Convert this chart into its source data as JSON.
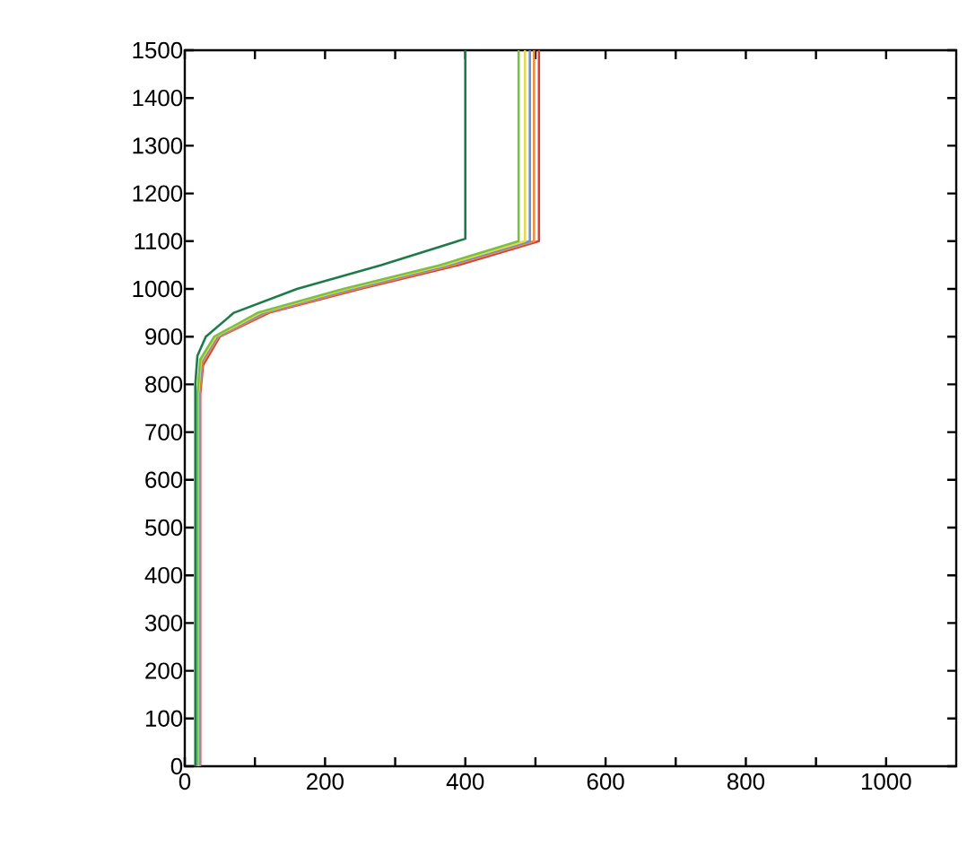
{
  "chart_data": {
    "type": "line",
    "xlim": [
      0,
      1100
    ],
    "ylim": [
      0,
      1500
    ],
    "xticks": [
      0,
      {
        "value": 100,
        "label": null
      },
      200,
      {
        "value": 300,
        "label": null
      },
      400,
      {
        "value": 500,
        "label": null
      },
      600,
      {
        "value": 700,
        "label": null
      },
      800,
      {
        "value": 900,
        "label": null
      },
      1000
    ],
    "yticks": [
      0,
      100,
      200,
      300,
      400,
      500,
      600,
      700,
      800,
      900,
      1000,
      1100,
      1200,
      1300,
      1400,
      1500
    ],
    "grid": false,
    "marker": "none",
    "line_style": "solid",
    "series": [
      {
        "color": "#d8403a",
        "x": [
          22,
          22,
          26,
          50,
          120,
          250,
          390,
          505,
          505
        ],
        "values": [
          0,
          780,
          840,
          900,
          950,
          1000,
          1050,
          1100,
          1500
        ]
      },
      {
        "color": "#e89040",
        "x": [
          21,
          21,
          25,
          48,
          116,
          244,
          382,
          498,
          498
        ],
        "values": [
          0,
          780,
          845,
          900,
          950,
          1000,
          1050,
          1100,
          1500
        ]
      },
      {
        "color": "#6a8fd0",
        "x": [
          20,
          20,
          24,
          46,
          112,
          238,
          376,
          492,
          492
        ],
        "values": [
          0,
          780,
          848,
          900,
          950,
          1000,
          1050,
          1100,
          1500
        ]
      },
      {
        "color": "#e8d84a",
        "x": [
          19,
          19,
          23,
          44,
          108,
          232,
          370,
          485,
          485
        ],
        "values": [
          0,
          780,
          850,
          900,
          950,
          1000,
          1050,
          1100,
          1500
        ]
      },
      {
        "color": "#7ac143",
        "x": [
          18,
          18,
          22,
          42,
          104,
          226,
          364,
          476,
          476
        ],
        "values": [
          0,
          780,
          852,
          900,
          950,
          1000,
          1050,
          1100,
          1500
        ]
      },
      {
        "color": "#1f7a4a",
        "x": [
          15,
          15,
          18,
          30,
          70,
          160,
          280,
          400,
          400
        ],
        "values": [
          0,
          800,
          860,
          900,
          950,
          1000,
          1050,
          1105,
          1500
        ]
      }
    ]
  }
}
